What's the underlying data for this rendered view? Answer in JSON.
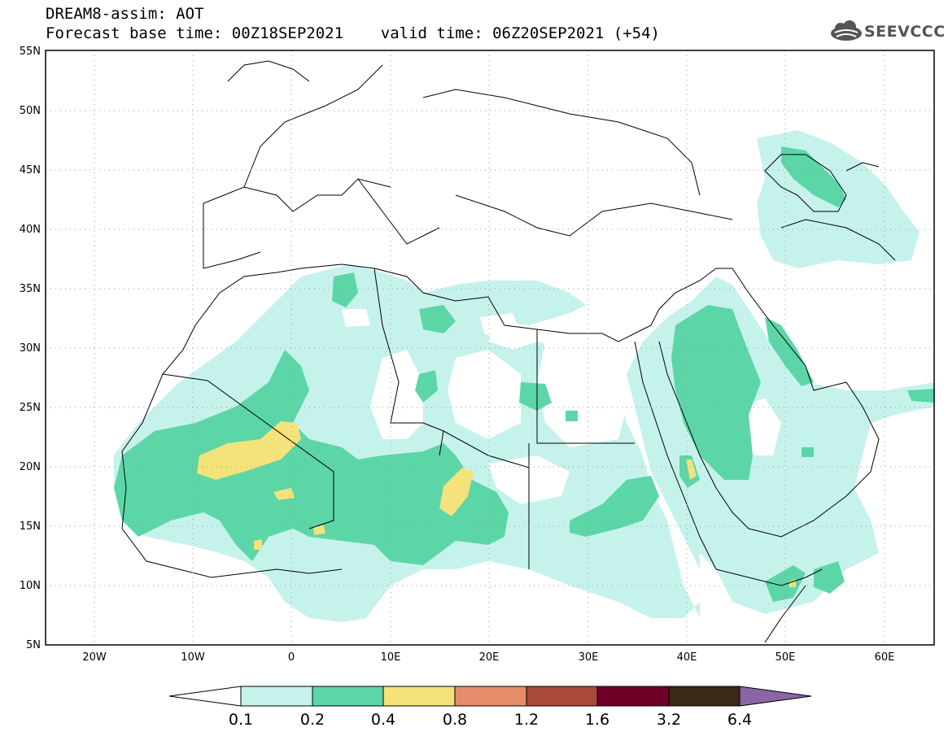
{
  "title": {
    "line1": "DREAM8-assim: AOT",
    "line2": "Forecast base time: 00Z18SEP2021    valid time: 06Z20SEP2021 (+54)"
  },
  "logo": {
    "text": "SEEVCCC",
    "icon": "cloud-logo-icon"
  },
  "map": {
    "lon_range": [
      -25,
      65
    ],
    "lat_range": [
      5,
      55
    ],
    "grid": "dotted",
    "lat_labels": [
      "55N",
      "50N",
      "45N",
      "40N",
      "35N",
      "30N",
      "25N",
      "20N",
      "15N",
      "10N",
      "5N"
    ],
    "lon_labels": [
      "20W",
      "10W",
      "0",
      "10E",
      "20E",
      "30E",
      "40E",
      "50E",
      "60E"
    ]
  },
  "colorbar": {
    "labels": [
      "0.1",
      "0.2",
      "0.4",
      "0.8",
      "1.2",
      "1.6",
      "3.2",
      "6.4"
    ],
    "colors": [
      "#ffffff",
      "#c6f2ec",
      "#5cd6a7",
      "#f4e27a",
      "#e78c6a",
      "#a9493c",
      "#6e0028",
      "#3a2818",
      "#8a67a4"
    ]
  }
}
